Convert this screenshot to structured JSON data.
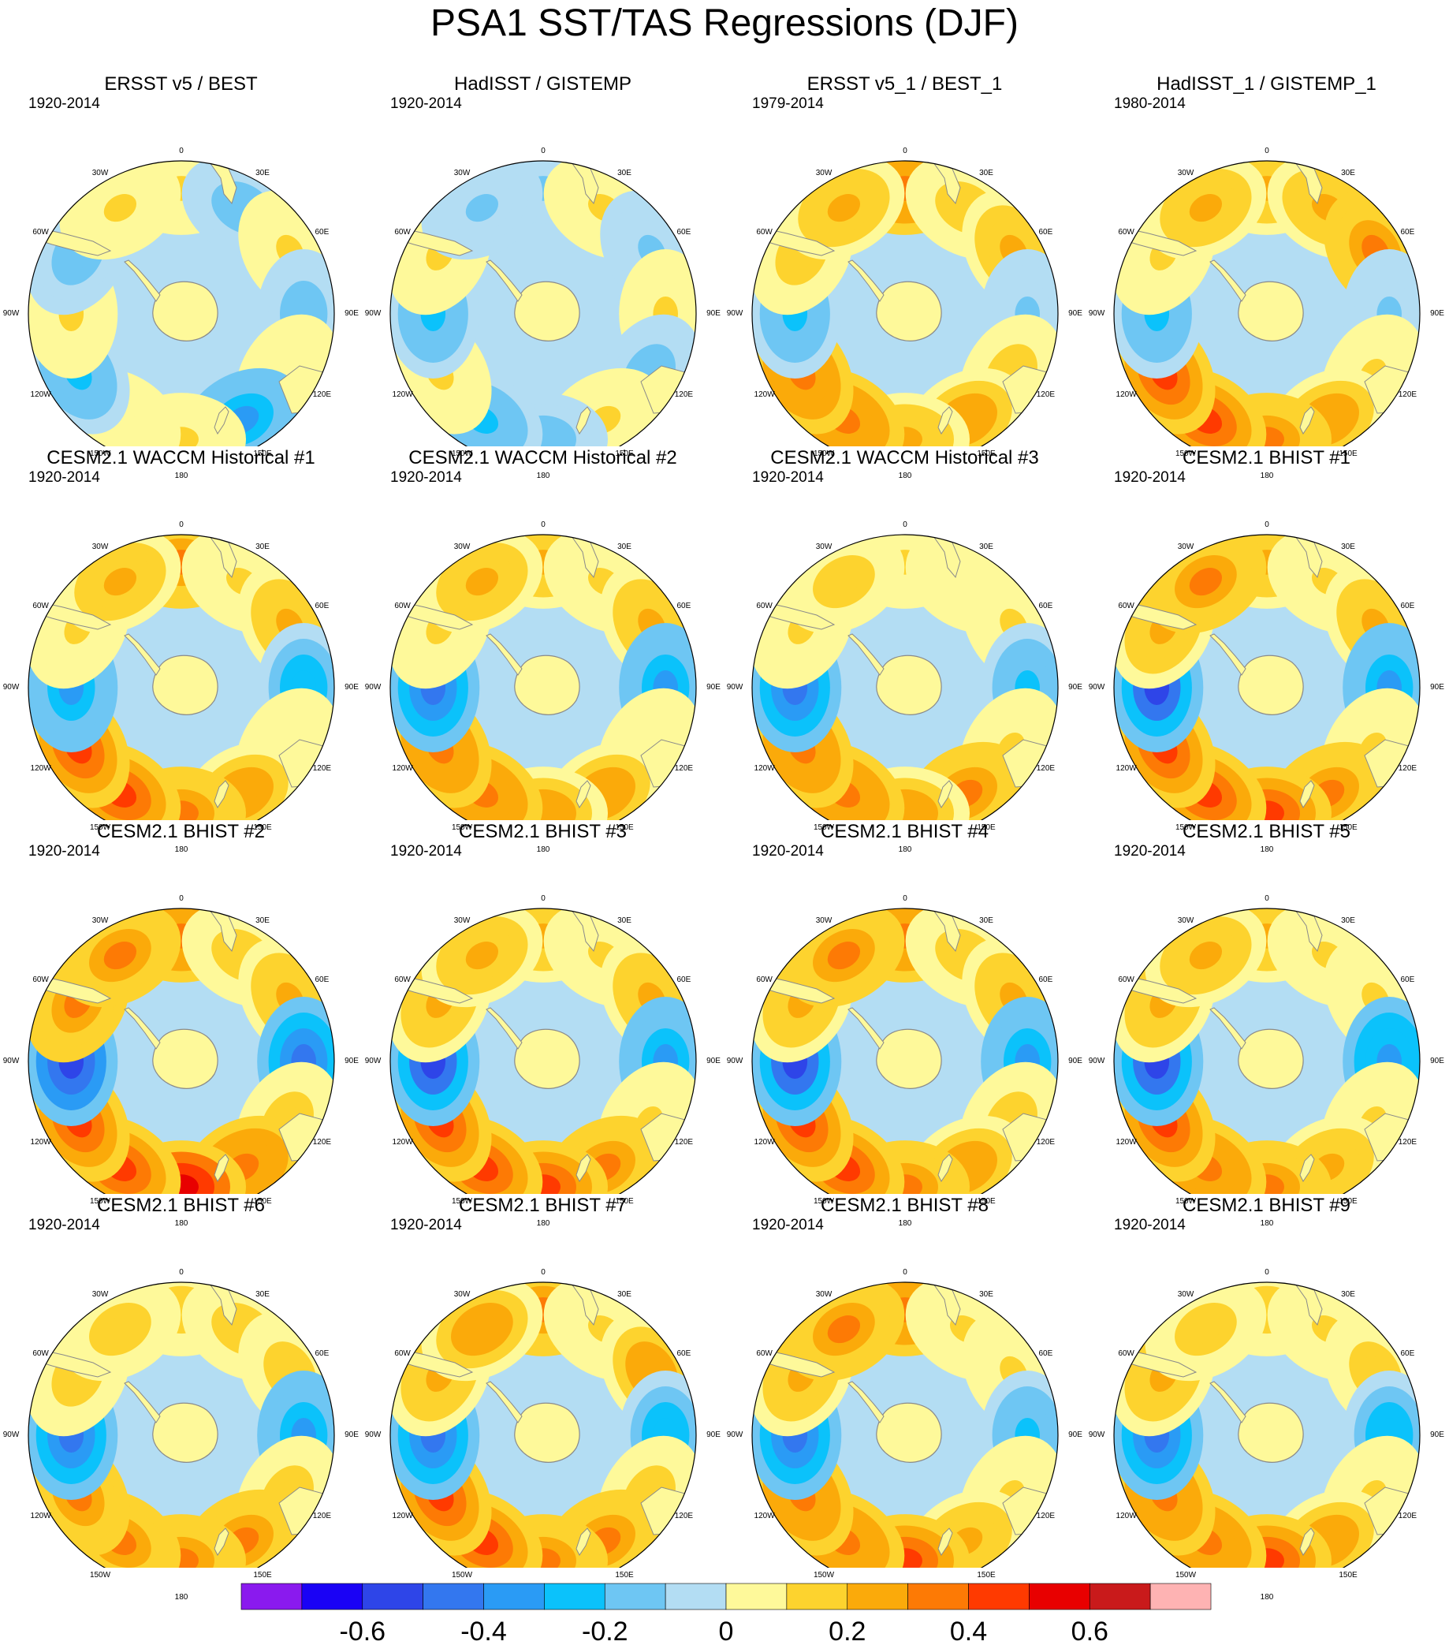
{
  "title": "PSA1 SST/TAS Regressions (DJF)",
  "longitude_labels": [
    "0",
    "30E",
    "60E",
    "90E",
    "120E",
    "150E",
    "180",
    "150W",
    "120W",
    "90W",
    "60W",
    "30W"
  ],
  "colorbar": {
    "colors": [
      "#8A1AEE",
      "#1A02F5",
      "#2E45E8",
      "#3377EF",
      "#2A9BF5",
      "#0BC2FB",
      "#6EC6F3",
      "#B3DDF3",
      "#FEF99A",
      "#FDD32E",
      "#FBAA0A",
      "#FD7A05",
      "#FF3A00",
      "#E80000",
      "#C91A1B",
      "#FEB3B3"
    ],
    "boundaries": [
      -0.7,
      -0.6,
      -0.5,
      -0.4,
      -0.3,
      -0.2,
      -0.1,
      0,
      0.1,
      0.2,
      0.3,
      0.4,
      0.5,
      0.6,
      0.7
    ],
    "tick_labels": [
      "-0.6",
      "-0.4",
      "-0.2",
      "0",
      "0.2",
      "0.4",
      "0.6"
    ]
  },
  "colors": {
    "land": "#FEF99A",
    "coast": "#8A8A8A",
    "border": "#000000"
  },
  "panels": [
    {
      "title": "ERSST v5 / BEST",
      "period": "1920-2014",
      "pattern": [
        0.1,
        -0.15,
        0.1,
        -0.15,
        0.05,
        -0.3,
        0.1,
        0.05,
        -0.2,
        0.1,
        -0.15,
        0.1
      ]
    },
    {
      "title": "HadISST / GISTEMP",
      "period": "1920-2014",
      "pattern": [
        -0.1,
        0.1,
        -0.1,
        0.1,
        -0.15,
        0.1,
        -0.15,
        -0.2,
        0.1,
        -0.2,
        0.1,
        -0.1
      ]
    },
    {
      "title": "ERSST v5_1 / BEST_1",
      "period": "1979-2014",
      "pattern": [
        0.35,
        0.15,
        0.2,
        -0.1,
        0.15,
        0.25,
        0.2,
        0.35,
        0.35,
        -0.2,
        0.15,
        0.2
      ]
    },
    {
      "title": "HadISST_1 / GISTEMP_1",
      "period": "1980-2014",
      "pattern": [
        0.2,
        0.2,
        0.3,
        -0.1,
        0.1,
        0.25,
        0.3,
        0.4,
        0.4,
        -0.2,
        0.1,
        0.2
      ]
    },
    {
      "title": "CESM2.1 WACCM Historical #1",
      "period": "1920-2014",
      "pattern": [
        0.3,
        0.1,
        0.2,
        -0.25,
        0.05,
        0.25,
        0.3,
        0.4,
        0.4,
        -0.3,
        0.1,
        0.2
      ]
    },
    {
      "title": "CESM2.1 WACCM Historical #2",
      "period": "1920-2014",
      "pattern": [
        0.2,
        0.1,
        0.2,
        -0.3,
        0.05,
        0.25,
        0.25,
        0.35,
        0.35,
        -0.45,
        0.1,
        0.2
      ]
    },
    {
      "title": "CESM2.1 WACCM Historical #3",
      "period": "1920-2014",
      "pattern": [
        0.1,
        0.05,
        0.1,
        -0.2,
        0.1,
        0.3,
        0.25,
        0.35,
        0.35,
        -0.45,
        0.1,
        0.15
      ]
    },
    {
      "title": "CESM2.1 BHIST #1",
      "period": "1920-2014",
      "pattern": [
        0.2,
        0.1,
        0.2,
        -0.3,
        0.1,
        0.3,
        0.45,
        0.4,
        0.4,
        -0.5,
        0.2,
        0.3
      ]
    },
    {
      "title": "CESM2.1 BHIST #2",
      "period": "1920-2014",
      "pattern": [
        0.35,
        0.15,
        0.2,
        -0.45,
        0.15,
        0.35,
        0.5,
        0.45,
        0.45,
        -0.55,
        0.3,
        0.3
      ]
    },
    {
      "title": "CESM2.1 BHIST #3",
      "period": "1920-2014",
      "pattern": [
        0.2,
        0.1,
        0.2,
        -0.3,
        0.1,
        0.3,
        0.4,
        0.4,
        0.4,
        -0.5,
        0.2,
        0.2
      ]
    },
    {
      "title": "CESM2.1 BHIST #4",
      "period": "1920-2014",
      "pattern": [
        0.35,
        0.15,
        0.2,
        -0.3,
        0.15,
        0.25,
        0.3,
        0.4,
        0.45,
        -0.5,
        0.2,
        0.3
      ]
    },
    {
      "title": "CESM2.1 BHIST #5",
      "period": "1920-2014",
      "pattern": [
        0.2,
        0.1,
        0.1,
        -0.35,
        0.1,
        0.2,
        0.3,
        0.35,
        0.4,
        -0.5,
        0.2,
        0.2
      ]
    },
    {
      "title": "CESM2.1 BHIST #6",
      "period": "1920-2014",
      "pattern": [
        0.15,
        0.15,
        0.15,
        -0.3,
        0.15,
        0.3,
        0.3,
        0.3,
        0.3,
        -0.45,
        0.15,
        0.15
      ]
    },
    {
      "title": "CESM2.1 BHIST #7",
      "period": "1920-2014",
      "pattern": [
        0.3,
        0.1,
        0.25,
        -0.25,
        0.15,
        0.3,
        0.3,
        0.4,
        0.4,
        -0.45,
        0.2,
        0.25
      ]
    },
    {
      "title": "CESM2.1 BHIST #8",
      "period": "1920-2014",
      "pattern": [
        0.35,
        0.1,
        0.1,
        -0.2,
        0.1,
        0.2,
        0.4,
        0.35,
        0.35,
        -0.45,
        0.2,
        0.3
      ]
    },
    {
      "title": "CESM2.1 BHIST #9",
      "period": "1920-2014",
      "pattern": [
        0.15,
        0.1,
        0.15,
        -0.25,
        0.1,
        0.25,
        0.45,
        0.35,
        0.35,
        -0.45,
        0.2,
        0.15
      ]
    }
  ]
}
